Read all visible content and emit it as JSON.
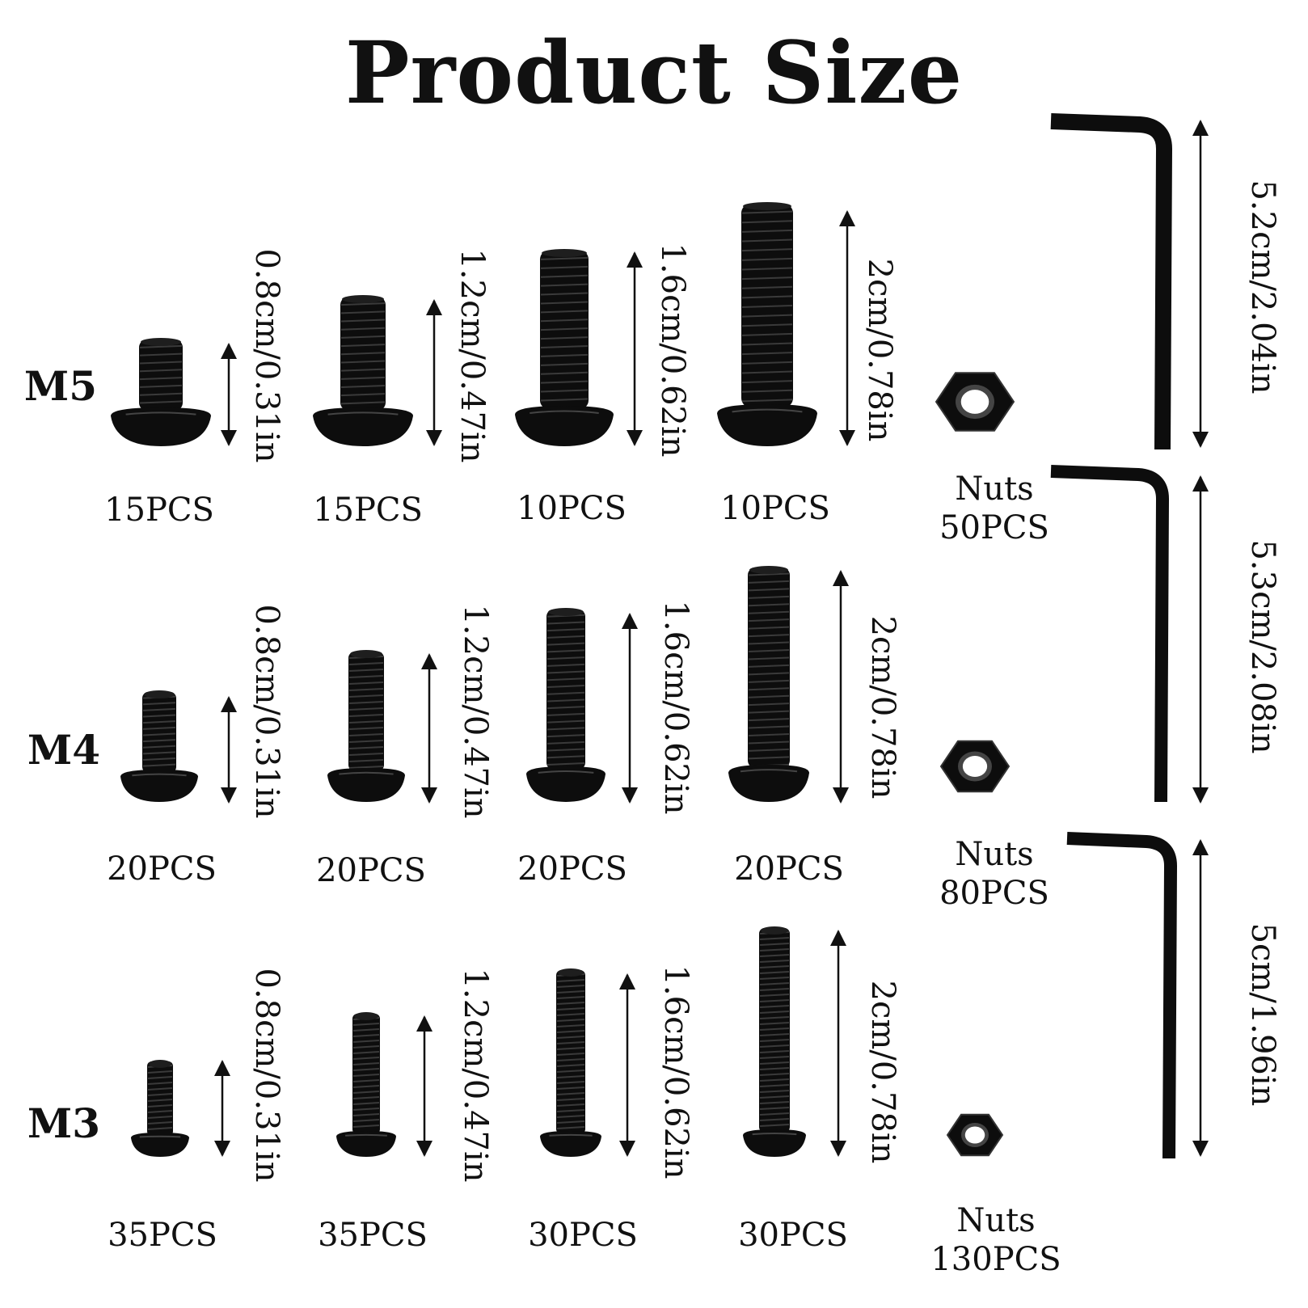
{
  "title": "Product Size",
  "rows": [
    {
      "label": "M5",
      "screws": [
        {
          "dimension": "0.8cm/0.31in",
          "quantity": "15PCS"
        },
        {
          "dimension": "1.2cm/0.47in",
          "quantity": "15PCS"
        },
        {
          "dimension": "1.6cm/0.62in",
          "quantity": "10PCS"
        },
        {
          "dimension": "2cm/0.78in",
          "quantity": "10PCS"
        }
      ],
      "nuts": {
        "label": "Nuts",
        "quantity": "50PCS"
      },
      "wrench": {
        "dimension": "5.2cm/2.04in"
      }
    },
    {
      "label": "M4",
      "screws": [
        {
          "dimension": "0.8cm/0.31in",
          "quantity": "20PCS"
        },
        {
          "dimension": "1.2cm/0.47in",
          "quantity": "20PCS"
        },
        {
          "dimension": "1.6cm/0.62in",
          "quantity": "20PCS"
        },
        {
          "dimension": "2cm/0.78in",
          "quantity": "20PCS"
        }
      ],
      "nuts": {
        "label": "Nuts",
        "quantity": "80PCS"
      },
      "wrench": {
        "dimension": "5.3cm/2.08in"
      }
    },
    {
      "label": "M3",
      "screws": [
        {
          "dimension": "0.8cm/0.31in",
          "quantity": "35PCS"
        },
        {
          "dimension": "1.2cm/0.47in",
          "quantity": "35PCS"
        },
        {
          "dimension": "1.6cm/0.62in",
          "quantity": "30PCS"
        },
        {
          "dimension": "2cm/0.78in",
          "quantity": "30PCS"
        }
      ],
      "nuts": {
        "label": "Nuts",
        "quantity": "130PCS"
      },
      "wrench": {
        "dimension": "5cm/1.96in"
      }
    }
  ],
  "colors": {
    "background": "#ffffff",
    "text": "#111111",
    "hardware": "#0d0d0d"
  }
}
